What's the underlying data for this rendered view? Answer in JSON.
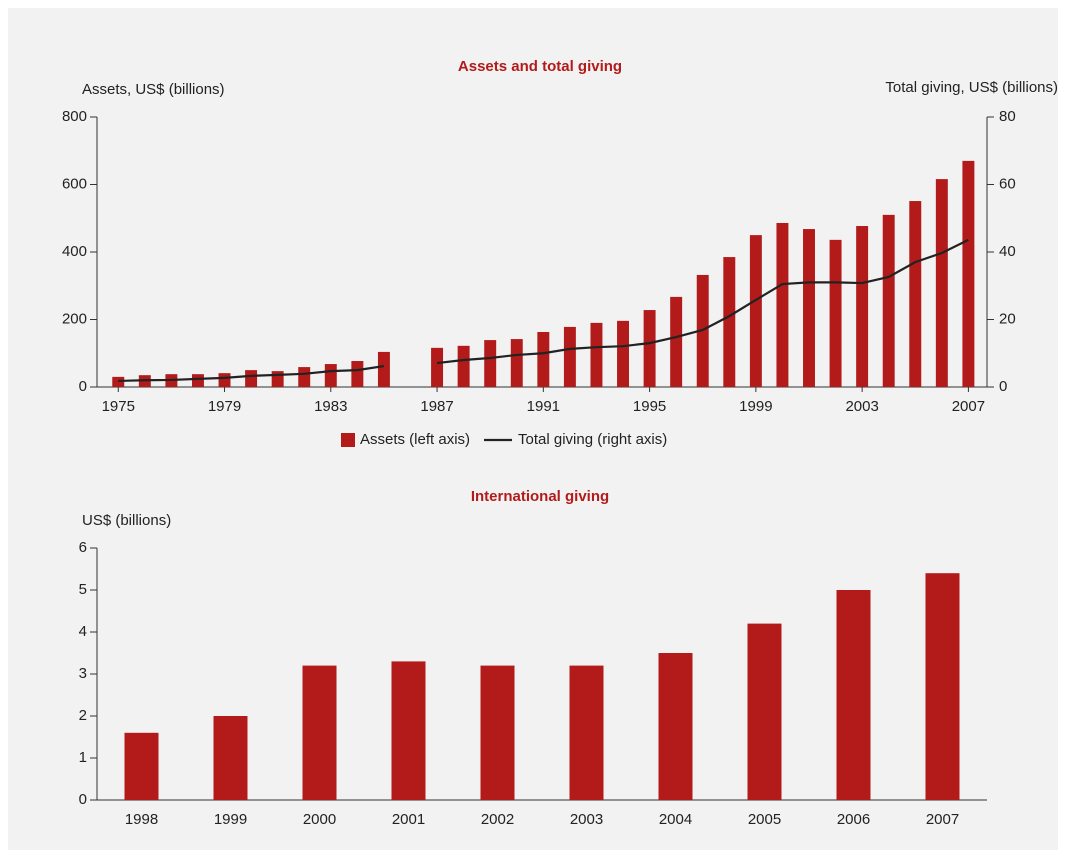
{
  "chart_data": [
    {
      "type": "bar",
      "title": "Assets and total giving",
      "ylabel": "Assets, US$ (billions)",
      "y2label": "Total giving, US$ (billions)",
      "x": [
        1975,
        1976,
        1977,
        1978,
        1979,
        1980,
        1981,
        1982,
        1983,
        1984,
        1985,
        1986,
        1987,
        1988,
        1989,
        1990,
        1991,
        1992,
        1993,
        1994,
        1995,
        1996,
        1997,
        1998,
        1999,
        2000,
        2001,
        2002,
        2003,
        2004,
        2005,
        2006,
        2007
      ],
      "xlim": [
        1974.2,
        2007.7
      ],
      "xticks": [
        1975,
        1979,
        1983,
        1987,
        1991,
        1995,
        1999,
        2003,
        2007
      ],
      "ylim": [
        0,
        800
      ],
      "yticks": [
        0,
        200,
        400,
        600,
        800
      ],
      "y2lim": [
        0,
        80
      ],
      "y2ticks": [
        0,
        20,
        40,
        60,
        80
      ],
      "legend": "bottom",
      "series": [
        {
          "name": "Assets (left axis)",
          "type": "bar",
          "color": "#b31b1b",
          "values": [
            30,
            35,
            38,
            38,
            41,
            50,
            47,
            59,
            68,
            77,
            104,
            null,
            116,
            122,
            139,
            142,
            163,
            178,
            190,
            196,
            228,
            267,
            332,
            385,
            450,
            486,
            468,
            436,
            477,
            510,
            551,
            616,
            670
          ]
        },
        {
          "name": "Total giving (right axis)",
          "type": "line",
          "axis": "y2",
          "color": "#222222",
          "values": [
            1.8,
            2,
            2.1,
            2.4,
            2.7,
            3.3,
            3.6,
            3.9,
            4.7,
            5,
            6.2,
            null,
            7.1,
            8,
            8.6,
            9.5,
            10,
            11.3,
            11.8,
            12.1,
            13,
            14.8,
            16.9,
            21,
            25.8,
            30.5,
            31,
            31,
            30.8,
            32.6,
            37,
            39.7,
            43.6
          ]
        }
      ]
    },
    {
      "type": "bar",
      "title": "International giving",
      "ylabel": "US$ (billions)",
      "categories": [
        "1998",
        "1999",
        "2000",
        "2001",
        "2002",
        "2003",
        "2004",
        "2005",
        "2006",
        "2007"
      ],
      "values": [
        1.6,
        2.0,
        3.2,
        3.3,
        3.2,
        3.2,
        3.5,
        4.2,
        5.0,
        5.4
      ],
      "color": "#b31b1b",
      "ylim": [
        0,
        6
      ],
      "yticks": [
        0,
        1,
        2,
        3,
        4,
        5,
        6
      ]
    }
  ]
}
